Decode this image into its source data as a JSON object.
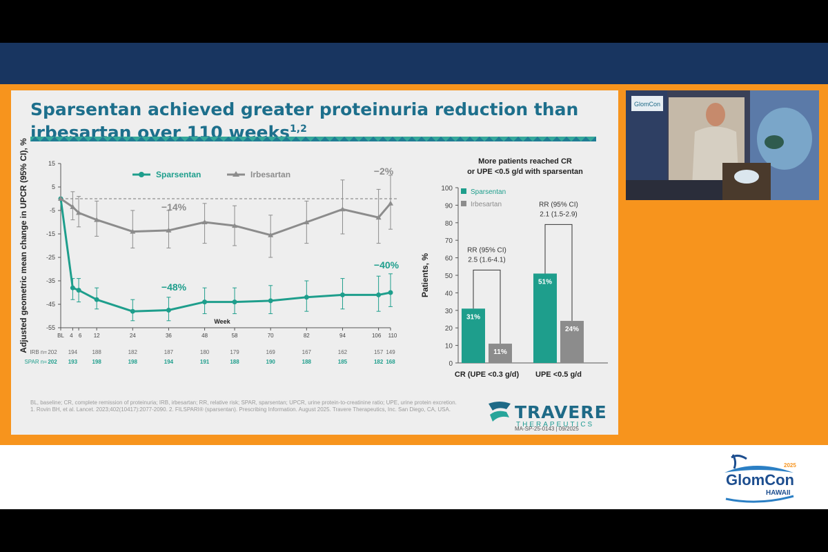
{
  "slide": {
    "title_line1": "Sparsentan achieved greater proteinuria reduction than",
    "title_line2": "irbesartan over 110 weeks",
    "title_sup": "1,2",
    "footnote1": "BL, baseline; CR, complete remission of proteinuria; IRB, irbesartan; RR, relative risk; SPAR, sparsentan; UPCR, urine protein-to-creatinine ratio; UPE, urine protein excretion.",
    "footnote2": "1. Rovin BH, et al. Lancet. 2023;402(10417):2077-2090. 2. FILSPARI® (sparsentan). Prescribing Information. August 2025. Travere Therapeutics, Inc. San Diego, CA, USA.",
    "logo_name": "TRAVERE",
    "logo_sub": "THERAPEUTICS",
    "code": "MA-SP-25-0143 | 09/2025"
  },
  "colors": {
    "sparsentan": "#1e9e8c",
    "irbesartan": "#8c8c8c",
    "title": "#1d6f8c",
    "orange": "#f7941d",
    "band": "#183560"
  },
  "chart_data": [
    {
      "type": "line",
      "ylabel": "Adjusted geometric mean change in UPCR (95% CI), %",
      "xlabel": "Week",
      "ylim": [
        -55,
        15
      ],
      "yticks": [
        15,
        5,
        -5,
        -15,
        -25,
        -35,
        -45,
        -55
      ],
      "x_labels": [
        "BL",
        "4",
        "6",
        "12",
        "24",
        "36",
        "48",
        "58",
        "70",
        "82",
        "94",
        "106",
        "110"
      ],
      "x": [
        0,
        4,
        6,
        12,
        24,
        36,
        48,
        58,
        70,
        82,
        94,
        106,
        110
      ],
      "series": [
        {
          "name": "Sparsentan",
          "values": [
            0,
            -38,
            -39,
            -43,
            -48,
            -47.5,
            -44,
            -44,
            -43.5,
            -42,
            -41,
            -41,
            -40
          ],
          "ci_low": [
            0,
            -43,
            -44,
            -47,
            -52,
            -52,
            -49,
            -49,
            -49,
            -48,
            -47,
            -48,
            -46
          ],
          "ci_high": [
            0,
            -34,
            -34,
            -38,
            -43,
            -42,
            -38,
            -38,
            -37,
            -35,
            -34,
            -33,
            -32
          ]
        },
        {
          "name": "Irbesartan",
          "values": [
            0,
            -3.5,
            -6,
            -9,
            -14,
            -13.5,
            -10,
            -11.5,
            -15.5,
            -10,
            -4.5,
            -8,
            -2
          ],
          "ci_low": [
            0,
            -9,
            -12,
            -16,
            -21,
            -21,
            -19,
            -20,
            -25,
            -19,
            -15,
            -19,
            -13
          ],
          "ci_high": [
            0,
            3,
            1,
            -1,
            -5,
            -5,
            -2,
            -3,
            -7,
            -1,
            8,
            4,
            10
          ]
        }
      ],
      "annotations": [
        {
          "text": "−14%",
          "series": "Irbesartan"
        },
        {
          "text": "−2%",
          "series": "Irbesartan"
        },
        {
          "text": "−48%",
          "series": "Sparsentan"
        },
        {
          "text": "−40%",
          "series": "Sparsentan"
        }
      ],
      "at_risk": {
        "irb_label": "IRB n=",
        "spar_label": "SPAR n=",
        "irb": [
          "202",
          "194",
          "188",
          "182",
          "187",
          "180",
          "179",
          "169",
          "167",
          "162",
          "157",
          "149"
        ],
        "spar": [
          "202",
          "193",
          "198",
          "198",
          "194",
          "191",
          "188",
          "190",
          "188",
          "185",
          "182",
          "168"
        ]
      }
    },
    {
      "type": "bar",
      "title_line1": "More patients reached CR",
      "title_line2": "or UPE <0.5 g/d with sparsentan",
      "ylabel": "Patients, %",
      "ylim": [
        0,
        100
      ],
      "yticks": [
        0,
        10,
        20,
        30,
        40,
        50,
        60,
        70,
        80,
        90,
        100
      ],
      "categories": [
        "CR (UPE <0.3 g/d)",
        "UPE <0.5 g/d"
      ],
      "series": [
        {
          "name": "Sparsentan",
          "values": [
            31,
            51
          ],
          "labels": [
            "31%",
            "51%"
          ]
        },
        {
          "name": "Irbesartan",
          "values": [
            11,
            24
          ],
          "labels": [
            "11%",
            "24%"
          ]
        }
      ],
      "rr": [
        {
          "line1": "RR (95% CI)",
          "line2": "2.5 (1.6-4.1)"
        },
        {
          "line1": "RR (95% CI)",
          "line2": "2.1 (1.5-2.9)"
        }
      ]
    }
  ],
  "conference_logo": {
    "name": "GlomCon",
    "sub": "HAWAII",
    "year": "2025",
    "slide_name": "GlomCon"
  }
}
